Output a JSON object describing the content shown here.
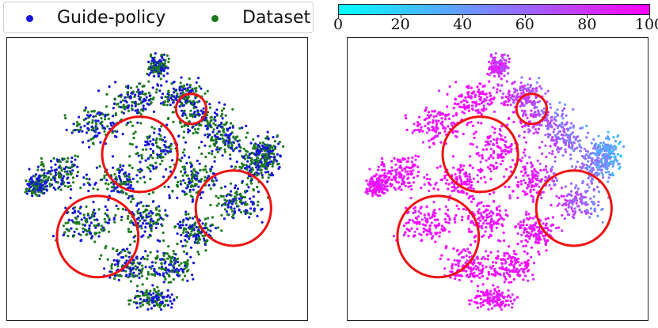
{
  "chart_data": [
    {
      "type": "scatter",
      "subtype": "t-SNE embedding",
      "legend": {
        "placement": "top",
        "entries": [
          {
            "name": "Guide-policy",
            "color": "#1515d8"
          },
          {
            "name": "Dataset",
            "color": "#1b7a1b"
          }
        ]
      },
      "series": [
        {
          "name": "Guide-policy",
          "color": "#1515d8"
        },
        {
          "name": "Dataset",
          "color": "#1b7a1b"
        }
      ],
      "annotations": [
        {
          "shape": "circle",
          "color": "#ee1111",
          "center": [
            0.61,
            0.25
          ],
          "radius": 0.05
        },
        {
          "shape": "circle",
          "color": "#ee1111",
          "center": [
            0.44,
            0.41
          ],
          "radius": 0.125
        },
        {
          "shape": "circle",
          "color": "#ee1111",
          "center": [
            0.75,
            0.6
          ],
          "radius": 0.125
        },
        {
          "shape": "circle",
          "color": "#ee1111",
          "center": [
            0.3,
            0.7
          ],
          "radius": 0.135
        }
      ],
      "grid": false
    },
    {
      "type": "scatter",
      "subtype": "t-SNE embedding colored by value",
      "colorbar": {
        "range": [
          0,
          100
        ],
        "ticks": [
          "0",
          "20",
          "40",
          "60",
          "80",
          "100"
        ],
        "tick_values": [
          0,
          20,
          40,
          60,
          80,
          100
        ],
        "colors": [
          "#00ffff",
          "#ff00ff"
        ],
        "placement": "top"
      },
      "annotations": [
        {
          "shape": "circle",
          "color": "#ee1111",
          "center": [
            0.61,
            0.25
          ],
          "radius": 0.05
        },
        {
          "shape": "circle",
          "color": "#ee1111",
          "center": [
            0.44,
            0.41
          ],
          "radius": 0.125
        },
        {
          "shape": "circle",
          "color": "#ee1111",
          "center": [
            0.75,
            0.6
          ],
          "radius": 0.125
        },
        {
          "shape": "circle",
          "color": "#ee1111",
          "center": [
            0.3,
            0.7
          ],
          "radius": 0.135
        }
      ],
      "grid": false
    }
  ]
}
